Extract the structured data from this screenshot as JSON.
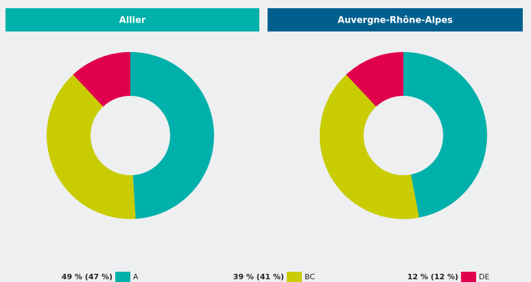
{
  "chart_data": [
    {
      "type": "pie",
      "title": "Allier",
      "header_color": "#00b0aa",
      "categories": [
        "A",
        "BC",
        "DE"
      ],
      "values": [
        49,
        39,
        12
      ],
      "colors": [
        "#00b0aa",
        "#c8cc00",
        "#e0004d"
      ]
    },
    {
      "type": "pie",
      "title": "Auvergne-Rhône-Alpes",
      "header_color": "#005f8e",
      "categories": [
        "A",
        "BC",
        "DE"
      ],
      "values": [
        47,
        41,
        12
      ],
      "colors": [
        "#00b0aa",
        "#c8cc00",
        "#e0004d"
      ]
    }
  ],
  "legend_labels": [
    "49 % (47 %)",
    "39 % (41 %)",
    "12 % (12 %)"
  ]
}
